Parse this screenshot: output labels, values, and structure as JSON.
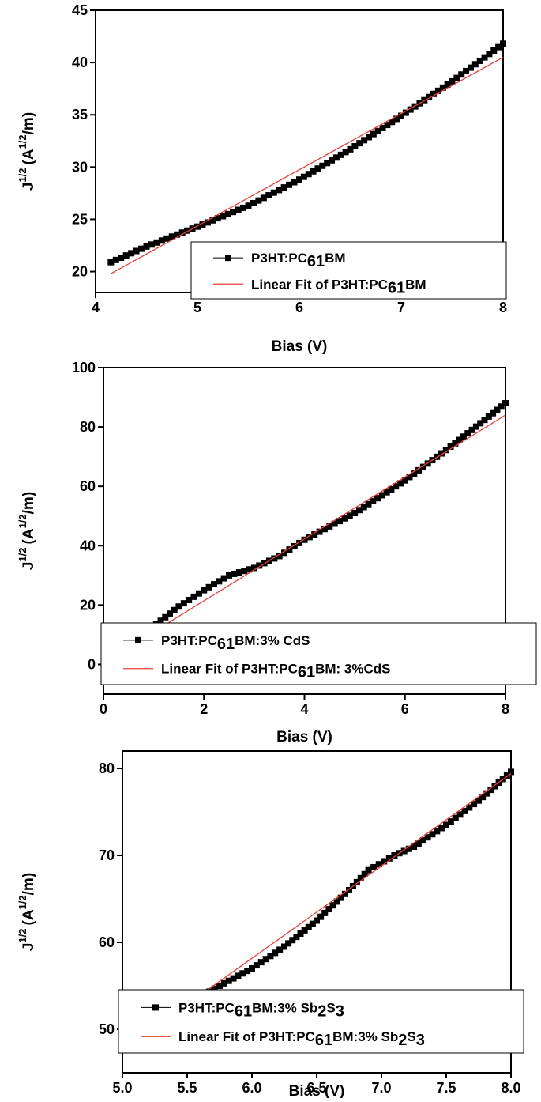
{
  "chart_data": [
    {
      "type": "scatter",
      "xlabel": "Bias (V)",
      "ylabel": "J",
      "ylabel_sup": "1/2",
      "ylabel_unit": "(A",
      "ylabel_unit_sup": "1/2",
      "ylabel_unit_end": "/m)",
      "xlim": [
        4,
        8
      ],
      "ylim": [
        18,
        45
      ],
      "xticks": [
        4,
        5,
        6,
        7,
        8
      ],
      "yticks": [
        20,
        25,
        30,
        35,
        40,
        45
      ],
      "legend": "bottom-right",
      "series": [
        {
          "name": "P3HT:PC61BM",
          "legend_parts": [
            "P3HT:PC",
            "61",
            "BM"
          ],
          "kind": "markers",
          "color": "#000000",
          "points": [
            [
              4.15,
              20.9
            ],
            [
              4.5,
              22.4
            ],
            [
              5.0,
              24.3
            ],
            [
              5.5,
              26.3
            ],
            [
              6.0,
              28.8
            ],
            [
              6.5,
              31.7
            ],
            [
              7.0,
              34.9
            ],
            [
              7.5,
              38.2
            ],
            [
              8.0,
              41.8
            ]
          ]
        },
        {
          "name": "Linear Fit of P3HT:PC61BM",
          "legend_parts": [
            "Linear Fit of P3HT:PC",
            "61",
            "BM"
          ],
          "kind": "line",
          "color": "#e8403a",
          "points": [
            [
              4.15,
              19.8
            ],
            [
              8.0,
              40.5
            ]
          ]
        }
      ]
    },
    {
      "type": "scatter",
      "xlabel": "Bias (V)",
      "ylabel": "J",
      "ylabel_sup": "1/2",
      "ylabel_unit": "(A",
      "ylabel_unit_sup": "1/2",
      "ylabel_unit_end": "/m)",
      "xlim": [
        0,
        8
      ],
      "ylim": [
        -10,
        100
      ],
      "xticks": [
        0,
        2,
        4,
        6,
        8
      ],
      "yticks": [
        0,
        20,
        40,
        60,
        80,
        100
      ],
      "legend": "bottom-left",
      "series": [
        {
          "name": "P3HT:PC61BM:3% CdS",
          "legend_parts": [
            "P3HT:PC",
            "61",
            "BM:3% CdS"
          ],
          "kind": "markers",
          "color": "#000000",
          "points": [
            [
              1.05,
              13.5
            ],
            [
              1.5,
              19.5
            ],
            [
              2.0,
              25.0
            ],
            [
              2.5,
              30.0
            ],
            [
              3.0,
              32.5
            ],
            [
              3.5,
              36.5
            ],
            [
              4.0,
              42.0
            ],
            [
              5.0,
              51.0
            ],
            [
              6.0,
              62.0
            ],
            [
              7.0,
              74.5
            ],
            [
              8.0,
              88.0
            ]
          ]
        },
        {
          "name": "Linear Fit of P3HT:PC61BM: 3%CdS",
          "legend_parts": [
            "Linear Fit of P3HT:PC",
            "61",
            "BM: 3%CdS"
          ],
          "kind": "line",
          "color": "#e8403a",
          "points": [
            [
              1.0,
              11.0
            ],
            [
              8.0,
              84.0
            ]
          ]
        }
      ]
    },
    {
      "type": "scatter",
      "xlabel": "Bias (V)",
      "ylabel": "J",
      "ylabel_sup": "1/2",
      "ylabel_unit": "(A",
      "ylabel_unit_sup": "1/2",
      "ylabel_unit_end": "/m)",
      "xlim": [
        5,
        8
      ],
      "ylim": [
        45,
        82
      ],
      "xticks": [
        5.0,
        5.5,
        6.0,
        6.5,
        7.0,
        7.5,
        8.0
      ],
      "xtick_labels": [
        "5.0",
        "5.5",
        "6.0",
        "6.5",
        "7.0",
        "7.5",
        "8.0"
      ],
      "yticks": [
        50,
        60,
        70,
        80
      ],
      "legend": "bottom-left",
      "series": [
        {
          "name": "P3HT:PC61BM:3% Sb2S3",
          "legend_parts": [
            "P3HT:PC",
            "61",
            "BM:3% Sb",
            "2",
            "S",
            "3"
          ],
          "kind": "markers",
          "color": "#000000",
          "points": [
            [
              5.4,
              52.0
            ],
            [
              5.75,
              55.0
            ],
            [
              6.0,
              57.0
            ],
            [
              6.25,
              59.5
            ],
            [
              6.5,
              62.5
            ],
            [
              6.75,
              66.0
            ],
            [
              6.9,
              68.3
            ],
            [
              7.1,
              70.0
            ],
            [
              7.25,
              71.0
            ],
            [
              7.5,
              73.5
            ],
            [
              7.75,
              76.3
            ],
            [
              8.0,
              79.6
            ]
          ]
        },
        {
          "name": "Linear Fit of P3HT:PC61BM:3% Sb2S3",
          "legend_parts": [
            "Linear Fit of P3HT:PC",
            "61",
            "BM:3% Sb",
            "2",
            "S",
            "3"
          ],
          "kind": "line",
          "color": "#e8403a",
          "points": [
            [
              5.4,
              51.8
            ],
            [
              8.0,
              79.4
            ]
          ]
        }
      ]
    }
  ]
}
